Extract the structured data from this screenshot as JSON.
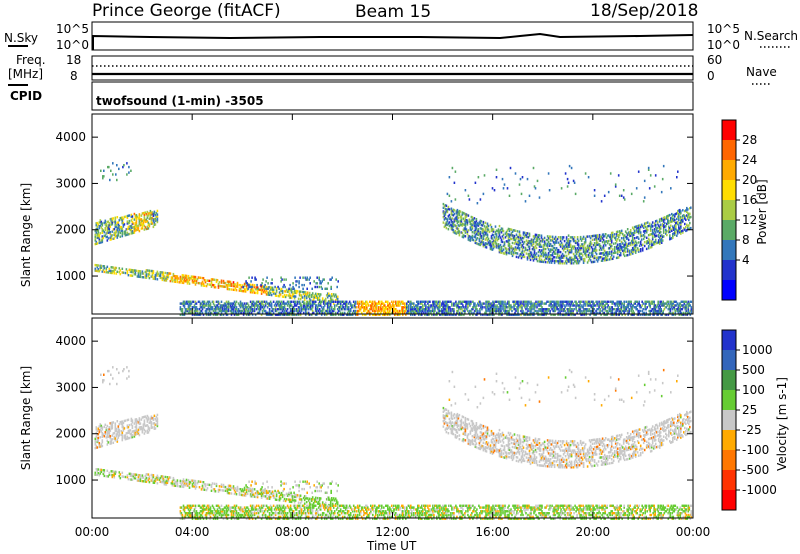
{
  "header": {
    "station": "Prince George (fitACF)",
    "beam": "Beam 15",
    "date": "18/Sep/2018"
  },
  "param_panels": {
    "nsky_label": "N.Sky",
    "nsearch_label": "N.Search",
    "nsky_ticks": [
      "10^5",
      "10^0"
    ],
    "nsearch_ticks": [
      "10^5",
      "10^0"
    ],
    "freq_label_line1": "Freq.",
    "freq_label_line2": "[MHz]",
    "freq_ticks": [
      "18",
      "8"
    ],
    "nave_label": "Nave",
    "nave_ticks": [
      "60",
      "0"
    ],
    "cpid_label": "CPID",
    "cpid_text": "twofsound (1-min) -3505"
  },
  "chart_data": [
    {
      "type": "heatmap",
      "title": "",
      "quantity": "Power",
      "colorbar_label": "Power [dB]",
      "colorbar_ticks": [
        "28",
        "24",
        "20",
        "16",
        "12",
        "8",
        "4"
      ],
      "colorbar_colors": [
        "#ff0000",
        "#ff6600",
        "#ffaa00",
        "#ffdd00",
        "#aacc44",
        "#5aaa66",
        "#3377bb",
        "#2233cc",
        "#0000ff"
      ],
      "ylabel": "Slant Range [km]",
      "ylim": [
        180,
        4500
      ],
      "yticks": [
        "4000",
        "3000",
        "2000",
        "1000"
      ],
      "x_ticks": [
        "00:00",
        "04:00",
        "08:00",
        "12:00",
        "16:00",
        "20:00",
        "00:00"
      ],
      "regions": [
        {
          "name": "morning band",
          "x_start_h": 0.1,
          "x_end_h": 2.6,
          "range_km": [
            1700,
            2400
          ]
        },
        {
          "name": "low range band",
          "x_start_h": 0.1,
          "x_end_h": 9.8,
          "range_km": [
            400,
            1300
          ]
        },
        {
          "name": "ground scatter floor",
          "x_start_h": 3.5,
          "x_end_h": 23.9,
          "range_km": [
            180,
            600
          ]
        },
        {
          "name": "afternoon arc",
          "x_start_h": 14.0,
          "x_end_h": 23.9,
          "range_km": [
            1300,
            2500
          ]
        }
      ]
    },
    {
      "type": "heatmap",
      "title": "",
      "quantity": "Velocity",
      "colorbar_label": "Velocity [m s-1]",
      "colorbar_ticks": [
        "1000",
        "500",
        "100",
        "25",
        "-25",
        "-100",
        "-500",
        "-1000"
      ],
      "colorbar_colors": [
        "#2233cc",
        "#3366bb",
        "#449944",
        "#66cc33",
        "#c8c8c8",
        "#ffaa00",
        "#ff7700",
        "#ff3300",
        "#ff0000"
      ],
      "ylabel": "Slant Range [km]",
      "ylim": [
        180,
        4500
      ],
      "yticks": [
        "4000",
        "3000",
        "2000",
        "1000"
      ],
      "xlabel": "Time UT",
      "x_ticks": [
        "00:00",
        "04:00",
        "08:00",
        "12:00",
        "16:00",
        "20:00",
        "00:00"
      ]
    }
  ]
}
